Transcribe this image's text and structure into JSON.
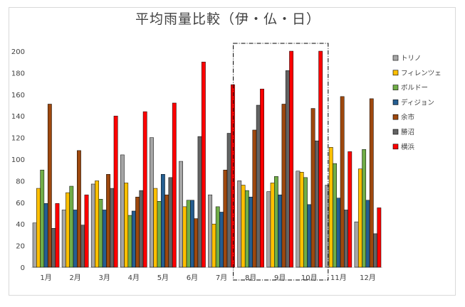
{
  "chart_data": {
    "type": "bar",
    "title": "平均雨量比較（伊・仏・日）",
    "categories": [
      "1月",
      "2月",
      "3月",
      "4月",
      "5月",
      "6月",
      "7月",
      "8月",
      "9月",
      "10月",
      "11月",
      "12月"
    ],
    "ylim": [
      0,
      200
    ],
    "yticks": [
      0,
      20,
      40,
      60,
      80,
      100,
      120,
      140,
      160,
      180,
      200
    ],
    "grid": false,
    "legend_position": "right",
    "highlight": {
      "categories": [
        "8月",
        "9月",
        "10月"
      ],
      "style": "dash-dot rectangle"
    },
    "series": [
      {
        "name": "トリノ",
        "color": "#a6a6a6",
        "values": [
          41,
          53,
          77,
          104,
          120,
          98,
          67,
          80,
          70,
          89,
          76,
          42
        ]
      },
      {
        "name": "フィレンツェ",
        "color": "#ffc000",
        "values": [
          73,
          69,
          80,
          78,
          73,
          56,
          40,
          76,
          78,
          88,
          111,
          91
        ]
      },
      {
        "name": "ボルドー",
        "color": "#70ad47",
        "values": [
          90,
          75,
          63,
          48,
          61,
          62,
          56,
          71,
          84,
          83,
          96,
          109
        ]
      },
      {
        "name": "ディジョン",
        "color": "#255e91",
        "values": [
          59,
          53,
          53,
          52,
          86,
          62,
          51,
          65,
          67,
          58,
          64,
          62
        ]
      },
      {
        "name": "余市",
        "color": "#9e480e",
        "values": [
          151,
          108,
          86,
          65,
          67,
          45,
          90,
          127,
          151,
          147,
          158,
          156
        ]
      },
      {
        "name": "勝沼",
        "color": "#636363",
        "values": [
          36,
          39,
          73,
          71,
          83,
          121,
          124,
          150,
          182,
          117,
          53,
          31
        ]
      },
      {
        "name": "横浜",
        "color": "#ff0000",
        "values": [
          59,
          67,
          140,
          144,
          152,
          190,
          169,
          165,
          200,
          200,
          107,
          55
        ]
      }
    ]
  }
}
